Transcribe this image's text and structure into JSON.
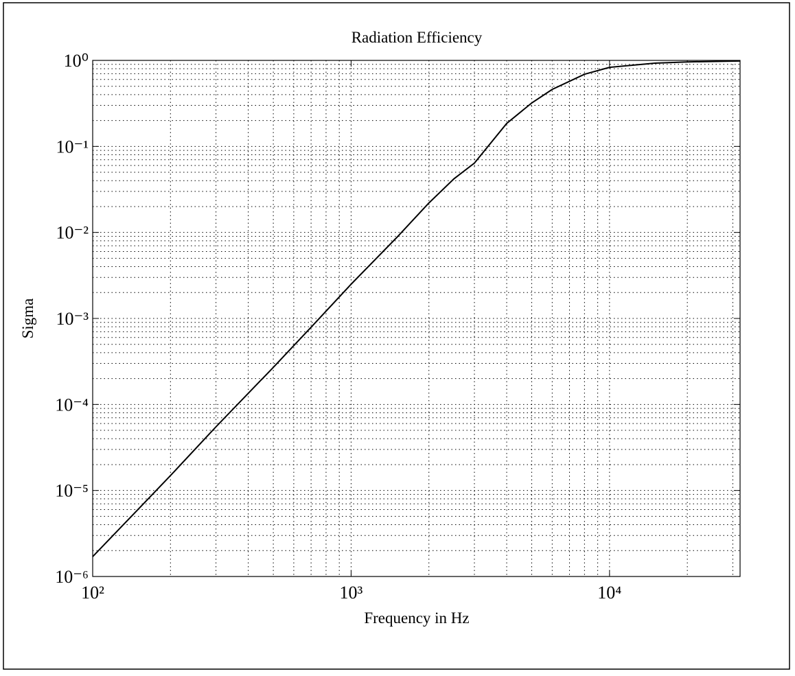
{
  "chart_data": {
    "type": "line",
    "title": "Radiation Efficiency",
    "x_label": "Frequency in Hz",
    "y_label": "Sigma",
    "x": [
      100,
      150,
      200,
      300,
      500,
      700,
      1000,
      1500,
      2000,
      2500,
      3000,
      4000,
      5000,
      6000,
      8000,
      10000,
      15000,
      20000,
      32000
    ],
    "series": [
      {
        "name": "Sigma",
        "color": "#000000",
        "values": [
          1.7e-06,
          6.05e-06,
          1.49e-05,
          5.5e-05,
          0.00027,
          0.00079,
          0.0025,
          0.0087,
          0.022,
          0.042,
          0.064,
          0.185,
          0.32,
          0.46,
          0.69,
          0.83,
          0.93,
          0.96,
          0.985
        ]
      }
    ],
    "xscale": "log",
    "yscale": "log",
    "xlim": [
      100,
      32000
    ],
    "ylim": [
      1e-06,
      1
    ],
    "xticks": [
      {
        "value": 100,
        "label": "10²"
      },
      {
        "value": 1000,
        "label": "10³"
      },
      {
        "value": 10000,
        "label": "10⁴"
      }
    ],
    "yticks": [
      {
        "value": 1e-06,
        "label": "10⁻⁶"
      },
      {
        "value": 1e-05,
        "label": "10⁻⁵"
      },
      {
        "value": 0.0001,
        "label": "10⁻⁴"
      },
      {
        "value": 0.001,
        "label": "10⁻³"
      },
      {
        "value": 0.01,
        "label": "10⁻²"
      },
      {
        "value": 0.1,
        "label": "10⁻¹"
      },
      {
        "value": 1,
        "label": "10⁰"
      }
    ],
    "grid": true,
    "minor_grid": true
  }
}
